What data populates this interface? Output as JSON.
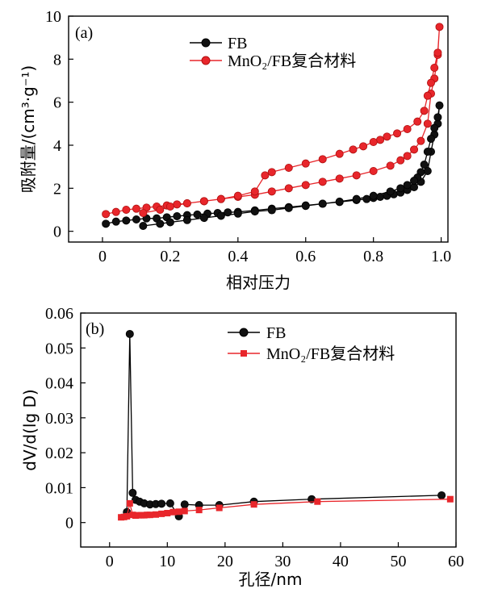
{
  "chart_data": [
    {
      "type": "line",
      "panel_label": "(a)",
      "xlabel": "相对压力",
      "ylabel": "吸附量/(cm³·g⁻¹)",
      "xlim": [
        -0.1,
        1.02
      ],
      "ylim": [
        -0.5,
        10
      ],
      "xticks": [
        0.0,
        0.2,
        0.4,
        0.6,
        0.8,
        1.0
      ],
      "xtick_labels": [
        "0",
        "0.2",
        "0.4",
        "0.6",
        "0.8",
        "1.0"
      ],
      "yticks": [
        0,
        2,
        4,
        6,
        8,
        10
      ],
      "ytick_labels": [
        "0",
        "2",
        "4",
        "6",
        "8",
        "10"
      ],
      "legend_position": "top-center",
      "series": [
        {
          "name": "FB",
          "color": "#000000",
          "marker": "circle",
          "x": [
            0.01,
            0.04,
            0.07,
            0.1,
            0.13,
            0.16,
            0.19,
            0.22,
            0.25,
            0.28,
            0.31,
            0.34,
            0.37,
            0.4,
            0.45,
            0.5,
            0.55,
            0.6,
            0.65,
            0.7,
            0.75,
            0.78,
            0.8,
            0.82,
            0.84,
            0.86,
            0.88,
            0.9,
            0.92,
            0.94,
            0.96,
            0.97,
            0.98,
            0.99,
            0.995,
            0.99,
            0.98,
            0.97,
            0.96,
            0.95,
            0.94,
            0.93,
            0.92,
            0.9,
            0.88,
            0.85,
            0.8,
            0.75,
            0.7,
            0.65,
            0.6,
            0.55,
            0.5,
            0.45,
            0.4,
            0.35,
            0.3,
            0.25,
            0.2,
            0.17,
            0.12
          ],
          "y": [
            0.35,
            0.45,
            0.5,
            0.55,
            0.6,
            0.6,
            0.65,
            0.7,
            0.75,
            0.78,
            0.82,
            0.85,
            0.88,
            0.9,
            0.97,
            1.05,
            1.12,
            1.2,
            1.28,
            1.36,
            1.45,
            1.5,
            1.55,
            1.6,
            1.65,
            1.72,
            1.8,
            1.92,
            2.05,
            2.3,
            2.8,
            3.7,
            4.5,
            5.0,
            5.85,
            5.3,
            4.8,
            4.3,
            3.7,
            3.1,
            2.75,
            2.5,
            2.35,
            2.15,
            2.0,
            1.85,
            1.65,
            1.5,
            1.38,
            1.28,
            1.18,
            1.08,
            0.98,
            0.92,
            0.82,
            0.72,
            0.62,
            0.52,
            0.42,
            0.35,
            0.25
          ]
        },
        {
          "name": "MnO₂/FB复合材料",
          "color": "#e8262b",
          "marker": "circle",
          "x": [
            0.01,
            0.04,
            0.07,
            0.1,
            0.13,
            0.16,
            0.19,
            0.22,
            0.25,
            0.3,
            0.35,
            0.4,
            0.45,
            0.5,
            0.55,
            0.6,
            0.65,
            0.7,
            0.75,
            0.8,
            0.85,
            0.88,
            0.9,
            0.92,
            0.94,
            0.96,
            0.97,
            0.98,
            0.99,
            0.995,
            0.99,
            0.98,
            0.97,
            0.96,
            0.95,
            0.93,
            0.9,
            0.87,
            0.84,
            0.82,
            0.8,
            0.77,
            0.74,
            0.7,
            0.65,
            0.6,
            0.55,
            0.5,
            0.48,
            0.45,
            0.4,
            0.35,
            0.3,
            0.25,
            0.2,
            0.17,
            0.12
          ],
          "y": [
            0.8,
            0.9,
            1.0,
            1.05,
            1.1,
            1.15,
            1.2,
            1.25,
            1.3,
            1.4,
            1.5,
            1.6,
            1.7,
            1.85,
            2.0,
            2.15,
            2.3,
            2.45,
            2.6,
            2.8,
            3.05,
            3.3,
            3.5,
            3.8,
            4.2,
            5.0,
            6.4,
            7.1,
            8.2,
            9.5,
            8.3,
            7.6,
            6.9,
            6.3,
            5.6,
            5.1,
            4.75,
            4.55,
            4.4,
            4.25,
            4.15,
            3.95,
            3.8,
            3.6,
            3.35,
            3.15,
            2.95,
            2.75,
            2.6,
            1.85,
            1.65,
            1.5,
            1.4,
            1.3,
            1.15,
            1.0,
            0.85
          ]
        }
      ]
    },
    {
      "type": "line",
      "panel_label": "(b)",
      "xlabel": "孔径/nm",
      "ylabel": "dV/d(lg D)",
      "xlim": [
        -5,
        60
      ],
      "ylim": [
        -0.007,
        0.06
      ],
      "xticks": [
        0,
        10,
        20,
        30,
        40,
        50,
        60
      ],
      "xtick_labels": [
        "0",
        "10",
        "20",
        "30",
        "40",
        "50",
        "60"
      ],
      "yticks": [
        0,
        0.01,
        0.02,
        0.03,
        0.04,
        0.05,
        0.06
      ],
      "ytick_labels": [
        "0",
        "0.01",
        "0.02",
        "0.03",
        "0.04",
        "0.05",
        "0.06"
      ],
      "legend_position": "top-center",
      "series": [
        {
          "name": "FB",
          "color": "#000000",
          "marker": "circle",
          "x": [
            3.0,
            3.5,
            4.0,
            4.5,
            5.2,
            6.0,
            7.0,
            8.0,
            9.0,
            10.5,
            12.0,
            13.0,
            15.5,
            19.0,
            25.0,
            35.0,
            57.5
          ],
          "y": [
            0.003,
            0.054,
            0.0085,
            0.0065,
            0.006,
            0.0055,
            0.0052,
            0.0053,
            0.0054,
            0.0055,
            0.0018,
            0.0052,
            0.005,
            0.005,
            0.006,
            0.0067,
            0.0078
          ]
        },
        {
          "name": "MnO₂/FB复合材料",
          "color": "#e8262b",
          "marker": "square",
          "x": [
            2.0,
            2.5,
            3.0,
            3.5,
            4.0,
            4.5,
            5.0,
            5.5,
            6.0,
            6.5,
            7.0,
            8.0,
            9.0,
            10.0,
            11.0,
            12.0,
            13.0,
            15.5,
            19.0,
            25.0,
            36.0,
            59.0
          ],
          "y": [
            0.0015,
            0.0016,
            0.0018,
            0.0055,
            0.0022,
            0.002,
            0.0021,
            0.0021,
            0.0021,
            0.0022,
            0.0022,
            0.0023,
            0.0025,
            0.0027,
            0.003,
            0.0031,
            0.0033,
            0.0036,
            0.0042,
            0.0052,
            0.006,
            0.0067
          ]
        }
      ]
    }
  ]
}
